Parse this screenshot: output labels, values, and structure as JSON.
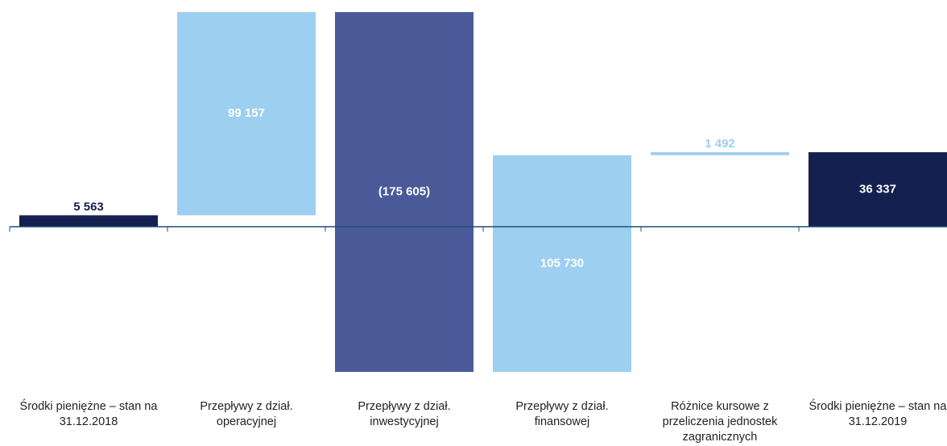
{
  "chart_data": {
    "type": "waterfall",
    "categories": [
      "Środki pieniężne – stan na 31.12.2018",
      "Przepływy z dział. operacyjnej",
      "Przepływy z dział. inwestycyjnej",
      "Przepływy z dział. finansowej",
      "Różnice kursowe z przeliczenia jednostek zagranicznych",
      "Środki pieniężne – stan na 31.12.2019"
    ],
    "values": [
      5563,
      99157,
      -175605,
      105730,
      1492,
      36337
    ],
    "value_labels": [
      "5 563",
      "99 157",
      "(175 605)",
      "105 730",
      "1 492",
      "36 337"
    ],
    "colors": [
      "#14204f",
      "#9dcff0",
      "#4a5a99",
      "#9dcff0",
      "#9dcff0",
      "#14204f"
    ]
  }
}
